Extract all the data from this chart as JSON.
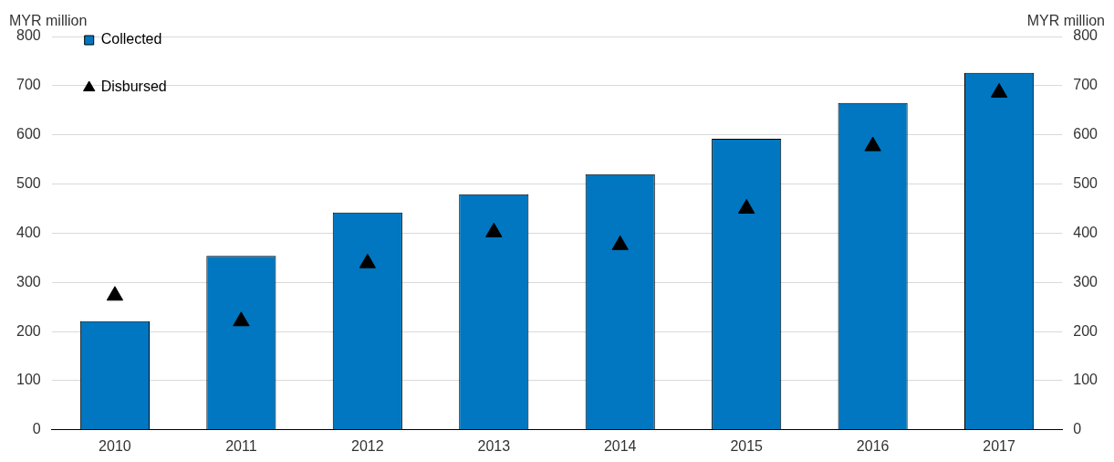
{
  "chart_data": {
    "type": "bar",
    "ylabel": "MYR million",
    "y2label": "MYR million",
    "categories": [
      "2010",
      "2011",
      "2012",
      "2013",
      "2014",
      "2015",
      "2016",
      "2017"
    ],
    "series": [
      {
        "name": "Collected",
        "color": "#0077c0",
        "values": [
          221,
          354,
          442,
          479,
          520,
          592,
          665,
          726
        ]
      },
      {
        "name": "Disbursed",
        "type": "scatter",
        "color": "#000000",
        "marker": "triangle",
        "values": [
          273,
          221,
          339,
          402,
          376,
          450,
          577,
          686
        ]
      }
    ],
    "ylim": [
      0,
      800
    ],
    "yticks": [
      0,
      100,
      200,
      300,
      400,
      500,
      600,
      700,
      800
    ],
    "y2lim": [
      0,
      800
    ],
    "y2ticks": [
      0,
      100,
      200,
      300,
      400,
      500,
      600,
      700,
      800
    ],
    "grid": "y",
    "legend": "top left"
  }
}
